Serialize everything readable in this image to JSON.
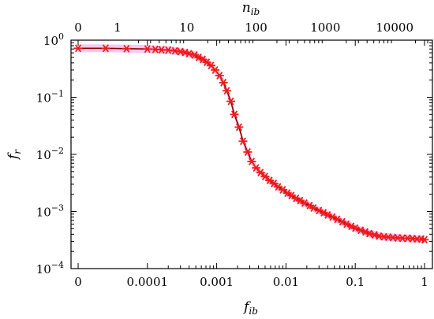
{
  "chart_data": {
    "type": "line",
    "title": "",
    "xlabel": "f_ib",
    "ylabel": "f_r",
    "x2label": "n_ib",
    "xscale": "log (first tick at 0)",
    "yscale": "log",
    "xlim": [
      0,
      1
    ],
    "ylim": [
      0.0001,
      1
    ],
    "x_ticks": [
      {
        "value": 0,
        "label": "0"
      },
      {
        "value": 0.0001,
        "label": "0.0001"
      },
      {
        "value": 0.001,
        "label": "0.001"
      },
      {
        "value": 0.01,
        "label": "0.01"
      },
      {
        "value": 0.1,
        "label": "0.1"
      },
      {
        "value": 1,
        "label": "1"
      }
    ],
    "x2_ticks": [
      {
        "value": 0,
        "label": "0"
      },
      {
        "value": 1,
        "label": "1"
      },
      {
        "value": 10,
        "label": "10"
      },
      {
        "value": 100,
        "label": "100"
      },
      {
        "value": 1000,
        "label": "1000"
      },
      {
        "value": 10000,
        "label": "10000"
      }
    ],
    "y_ticks": [
      {
        "value": 0.0001,
        "base": "10",
        "exp": "−4"
      },
      {
        "value": 0.001,
        "base": "10",
        "exp": "−3"
      },
      {
        "value": 0.01,
        "base": "10",
        "exp": "−2"
      },
      {
        "value": 0.1,
        "base": "10",
        "exp": "−1"
      },
      {
        "value": 1,
        "base": "10",
        "exp": "0"
      }
    ],
    "grid": false,
    "legend": "none",
    "series": [
      {
        "style": "red asterisk markers with dark red line and pink error band",
        "points": [
          [
            0,
            0.72
          ],
          [
            2.5e-05,
            0.72
          ],
          [
            5e-05,
            0.71
          ],
          [
            0.0001,
            0.7
          ],
          [
            0.00013,
            0.69
          ],
          [
            0.00016,
            0.68
          ],
          [
            0.0002,
            0.67
          ],
          [
            0.00025,
            0.65
          ],
          [
            0.0003,
            0.63
          ],
          [
            0.00035,
            0.61
          ],
          [
            0.0004,
            0.58
          ],
          [
            0.00048,
            0.55
          ],
          [
            0.00055,
            0.5
          ],
          [
            0.00063,
            0.46
          ],
          [
            0.00072,
            0.41
          ],
          [
            0.00083,
            0.36
          ],
          [
            0.00095,
            0.3
          ],
          [
            0.0011,
            0.24
          ],
          [
            0.00125,
            0.18
          ],
          [
            0.0014,
            0.13
          ],
          [
            0.0016,
            0.085
          ],
          [
            0.0018,
            0.05
          ],
          [
            0.0021,
            0.03
          ],
          [
            0.0024,
            0.017
          ],
          [
            0.0028,
            0.011
          ],
          [
            0.0032,
            0.0075
          ],
          [
            0.0037,
            0.0058
          ],
          [
            0.0043,
            0.0048
          ],
          [
            0.005,
            0.0041
          ],
          [
            0.0058,
            0.0035
          ],
          [
            0.0067,
            0.0031
          ],
          [
            0.0077,
            0.0027
          ],
          [
            0.009,
            0.0024
          ],
          [
            0.0105,
            0.0021
          ],
          [
            0.012,
            0.0019
          ],
          [
            0.014,
            0.0017
          ],
          [
            0.016,
            0.00155
          ],
          [
            0.0185,
            0.0014
          ],
          [
            0.022,
            0.00127
          ],
          [
            0.025,
            0.00115
          ],
          [
            0.03,
            0.00104
          ],
          [
            0.035,
            0.00095
          ],
          [
            0.04,
            0.00087
          ],
          [
            0.047,
            0.0008
          ],
          [
            0.055,
            0.00073
          ],
          [
            0.065,
            0.00066
          ],
          [
            0.075,
            0.0006
          ],
          [
            0.088,
            0.00055
          ],
          [
            0.1,
            0.00051
          ],
          [
            0.12,
            0.00047
          ],
          [
            0.14,
            0.00044
          ],
          [
            0.16,
            0.00041
          ],
          [
            0.19,
            0.00039
          ],
          [
            0.22,
            0.00037
          ],
          [
            0.26,
            0.00036
          ],
          [
            0.3,
            0.000355
          ],
          [
            0.35,
            0.00035
          ],
          [
            0.41,
            0.000345
          ],
          [
            0.48,
            0.00034
          ],
          [
            0.57,
            0.00034
          ],
          [
            0.67,
            0.000335
          ],
          [
            0.78,
            0.00033
          ],
          [
            0.9,
            0.00033
          ],
          [
            1,
            0.00032
          ]
        ]
      }
    ],
    "colors": {
      "marker": "#ee1c1c",
      "line": "#8b0000",
      "band": "#f5b6ea",
      "axes": "#000000"
    }
  }
}
